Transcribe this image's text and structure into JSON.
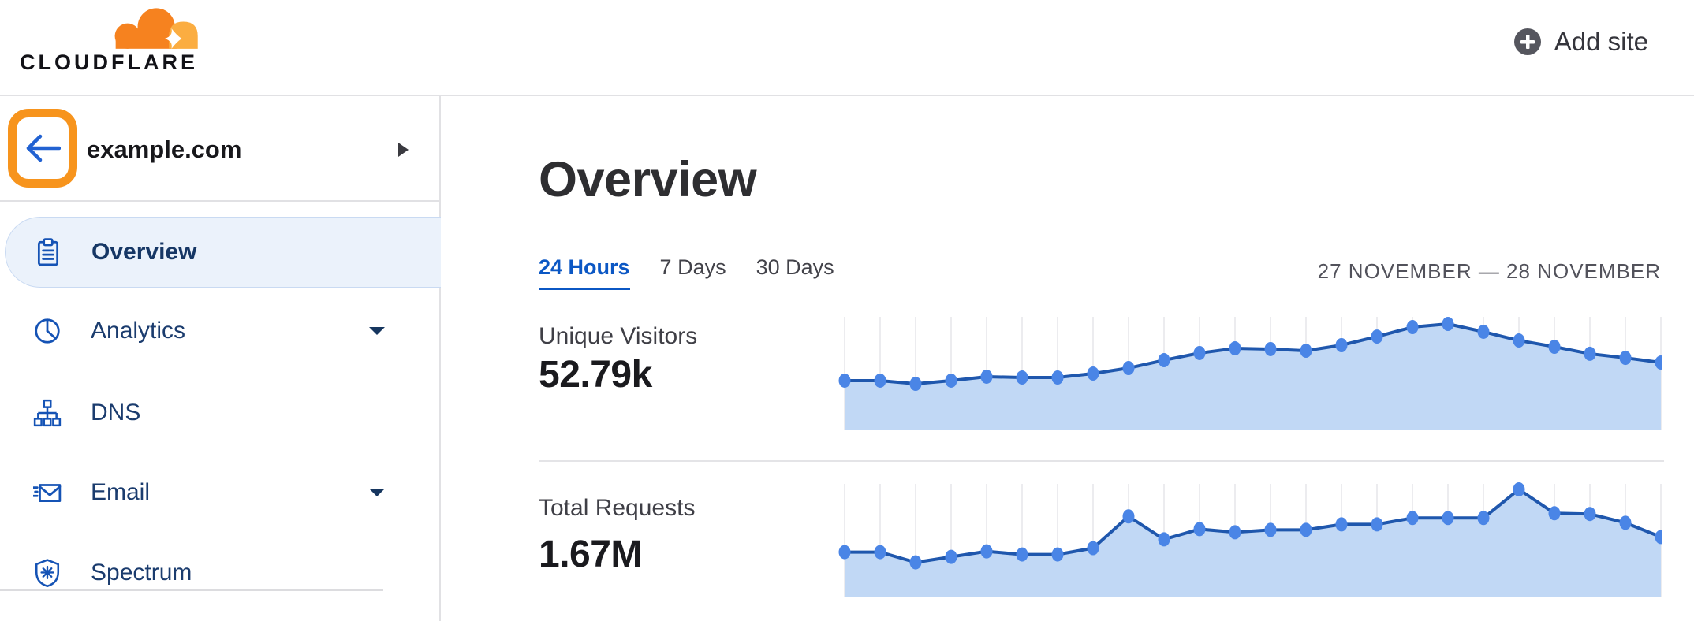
{
  "brand": {
    "name": "CLOUDFLARE",
    "logo_colors": {
      "cloud_primary": "#F6821F",
      "cloud_light": "#FBAD41"
    }
  },
  "header": {
    "add_site_label": "Add site",
    "add_site_icon": "plus-circle-icon"
  },
  "sidebar": {
    "zone": {
      "name": "example.com",
      "back_icon": "arrow-left-icon",
      "expand_icon": "caret-right-icon",
      "back_highlight_color": "#F7941D"
    },
    "items": [
      {
        "id": "overview",
        "label": "Overview",
        "icon": "clipboard-icon",
        "active": true,
        "expandable": false
      },
      {
        "id": "analytics",
        "label": "Analytics",
        "icon": "pie-chart-icon",
        "active": false,
        "expandable": true
      },
      {
        "id": "dns",
        "label": "DNS",
        "icon": "sitemap-icon",
        "active": false,
        "expandable": false
      },
      {
        "id": "email",
        "label": "Email",
        "icon": "envelope-send-icon",
        "active": false,
        "expandable": true
      },
      {
        "id": "spectrum",
        "label": "Spectrum",
        "icon": "shield-asterisk-icon",
        "active": false,
        "expandable": false
      }
    ]
  },
  "main": {
    "title": "Overview",
    "tabs": [
      {
        "label": "24 Hours",
        "active": true
      },
      {
        "label": "7 Days",
        "active": false
      },
      {
        "label": "30 Days",
        "active": false
      }
    ],
    "date_range": "27 NOVEMBER — 28 NOVEMBER"
  },
  "chart_data": [
    {
      "type": "area",
      "title": "Unique Visitors",
      "total_value": "52.79k",
      "xlabel": "time, 24 hourly points over 27–28 November (no tick labels shown)",
      "ylabel": "unique visitors (axis unlabeled)",
      "legend": "none",
      "grid": "vertical gridline at each hourly point",
      "points": 24,
      "values_pct_of_peak": [
        46.7,
        46.7,
        43.7,
        46.7,
        50.4,
        49.6,
        49.6,
        53.3,
        58.5,
        65.9,
        72.6,
        77,
        76.3,
        74.8,
        80,
        88.1,
        97,
        100,
        92.6,
        84.4,
        78.5,
        71.9,
        68.1,
        63.7
      ],
      "colors": {
        "line": "#1F57AD",
        "dot": "#4A85E6",
        "fill": "#C1D8F5",
        "grid": "#ECECEF"
      }
    },
    {
      "type": "area",
      "title": "Total Requests",
      "total_value": "1.67M",
      "xlabel": "time, 24 hourly points over 27–28 November (no tick labels shown)",
      "ylabel": "requests (axis unlabeled)",
      "legend": "none",
      "grid": "vertical gridline at each hourly point",
      "points": 24,
      "values_pct_of_peak": [
        41.9,
        41.9,
        32.4,
        37.5,
        42.6,
        39.7,
        39.7,
        45.6,
        75,
        53.7,
        63.2,
        60.3,
        62.5,
        62.5,
        67.6,
        67.6,
        73.5,
        73.5,
        73.5,
        100,
        77.9,
        77.2,
        69.1,
        55.9
      ],
      "colors": {
        "line": "#1F57AD",
        "dot": "#4A85E6",
        "fill": "#C1D8F5",
        "grid": "#ECECEF"
      }
    }
  ]
}
